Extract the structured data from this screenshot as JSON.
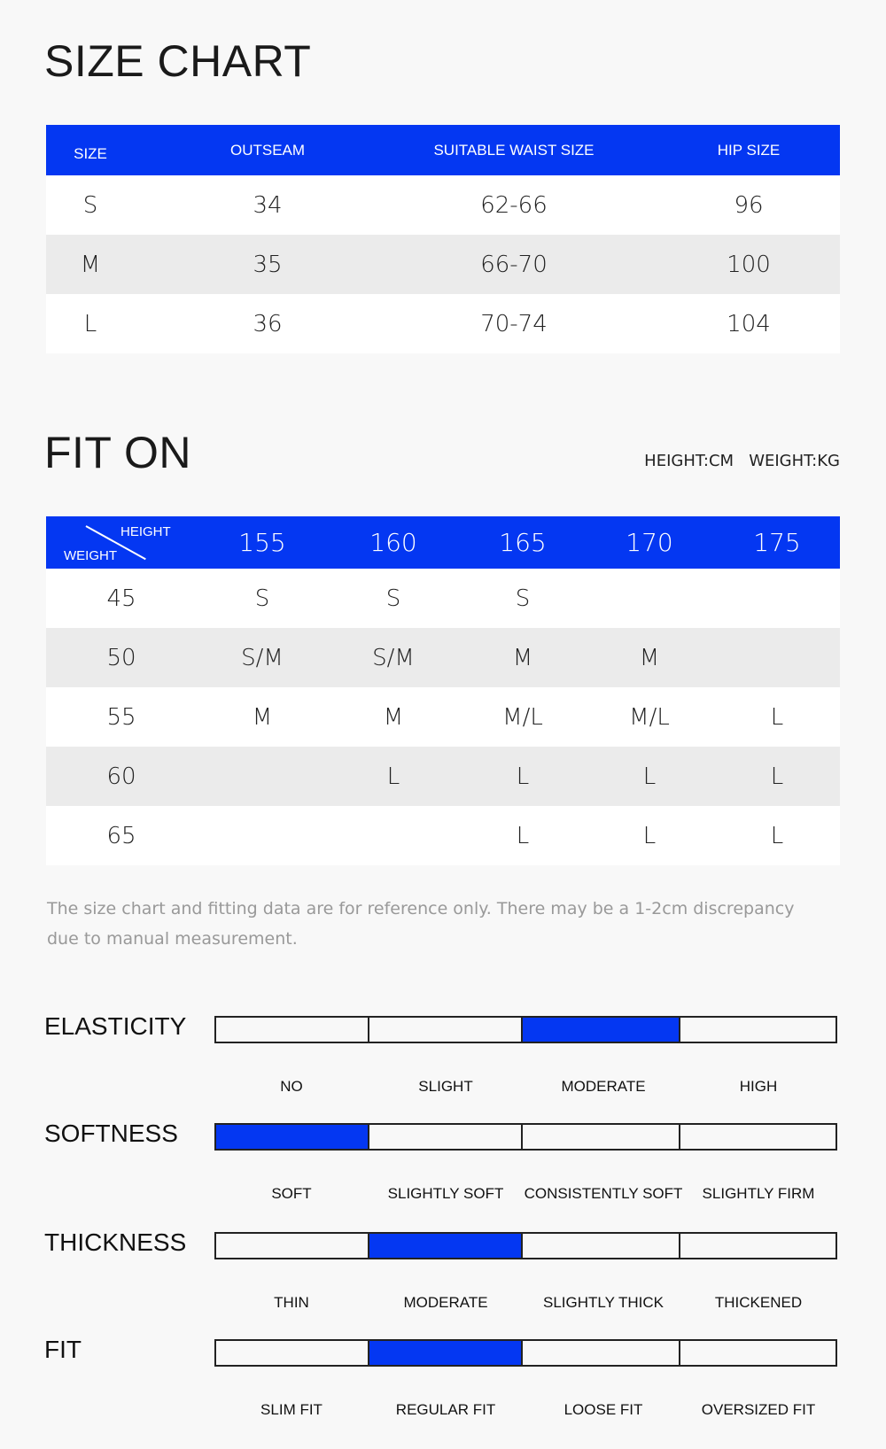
{
  "size_chart": {
    "title": "SIZE CHART",
    "headers": [
      "SIZE",
      "OUTSEAM",
      "SUITABLE WAIST SIZE",
      "HIP SIZE"
    ],
    "rows": [
      [
        "S",
        "34",
        "62-66",
        "96"
      ],
      [
        "M",
        "35",
        "66-70",
        "100"
      ],
      [
        "L",
        "36",
        "70-74",
        "104"
      ]
    ]
  },
  "fit_on": {
    "title": "FIT ON",
    "units": "HEIGHT:CM   WEIGHT:KG",
    "corner_height": "HEIGHT",
    "corner_weight": "WEIGHT",
    "heights": [
      "155",
      "160",
      "165",
      "170",
      "175"
    ],
    "rows": [
      [
        "45",
        "S",
        "S",
        "S",
        "",
        ""
      ],
      [
        "50",
        "S/M",
        "S/M",
        "M",
        "M",
        ""
      ],
      [
        "55",
        "M",
        "M",
        "M/L",
        "M/L",
        "L"
      ],
      [
        "60",
        "",
        "L",
        "L",
        "L",
        "L"
      ],
      [
        "65",
        "",
        "",
        "L",
        "L",
        "L"
      ]
    ]
  },
  "disclaimer": "The size chart and fitting data are for reference only. There may be a 1-2cm discrepancy due to manual measurement.",
  "scales": [
    {
      "label": "ELASTICITY",
      "options": [
        "NO",
        "SLIGHT",
        "MODERATE",
        "HIGH"
      ],
      "selected": 2
    },
    {
      "label": "SOFTNESS",
      "options": [
        "SOFT",
        "SLIGHTLY SOFT",
        "CONSISTENTLY SOFT",
        "SLIGHTLY FIRM"
      ],
      "selected": 0
    },
    {
      "label": "THICKNESS",
      "options": [
        "THIN",
        "MODERATE",
        "SLIGHTLY THICK",
        "THICKENED"
      ],
      "selected": 1
    },
    {
      "label": "FIT",
      "options": [
        "SLIM FIT",
        "REGULAR FIT",
        "LOOSE FIT",
        "OVERSIZED FIT"
      ],
      "selected": 1
    }
  ],
  "colors": {
    "accent": "#0437f2",
    "row_alt": "#ebebeb",
    "background": "#f8f8f8"
  }
}
